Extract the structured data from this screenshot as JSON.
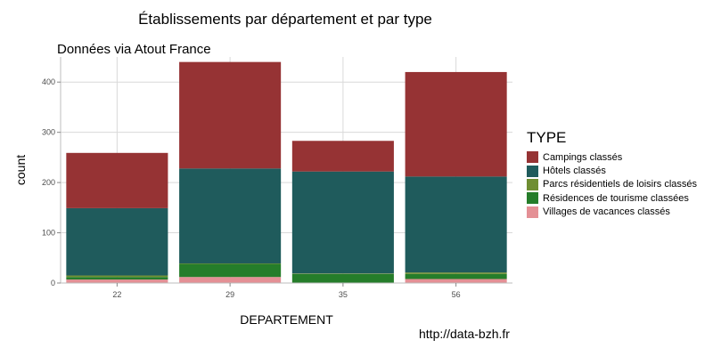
{
  "title": "Établissements par département et par type",
  "subtitle": "Données via Atout France",
  "source": "http://data-bzh.fr",
  "chart_data": {
    "type": "bar",
    "stacked": true,
    "categories": [
      "22",
      "29",
      "35",
      "56"
    ],
    "xlabel": "DEPARTEMENT",
    "ylabel": "count",
    "ylim": [
      0,
      450
    ],
    "yticks": [
      0,
      100,
      200,
      300,
      400
    ],
    "grid": true,
    "legend_title": "TYPE",
    "legend_position": "right",
    "series": [
      {
        "name": "Villages de vacances classés",
        "color": "#e49095",
        "values": [
          7,
          12,
          0,
          8
        ]
      },
      {
        "name": "Résidences de tourisme classées",
        "color": "#257d2a",
        "values": [
          5,
          26,
          18,
          10
        ]
      },
      {
        "name": "Parcs résidentiels de loisirs classés",
        "color": "#6f8e32",
        "values": [
          3,
          1,
          1,
          3
        ]
      },
      {
        "name": "Hôtels classés",
        "color": "#1f5b5c",
        "values": [
          134,
          189,
          203,
          191
        ]
      },
      {
        "name": "Campings classés",
        "color": "#963334",
        "values": [
          110,
          212,
          61,
          208
        ]
      }
    ],
    "legend_order": [
      "Campings classés",
      "Hôtels classés",
      "Parcs résidentiels de loisirs classés",
      "Résidences de tourisme classées",
      "Villages de vacances classés"
    ]
  }
}
